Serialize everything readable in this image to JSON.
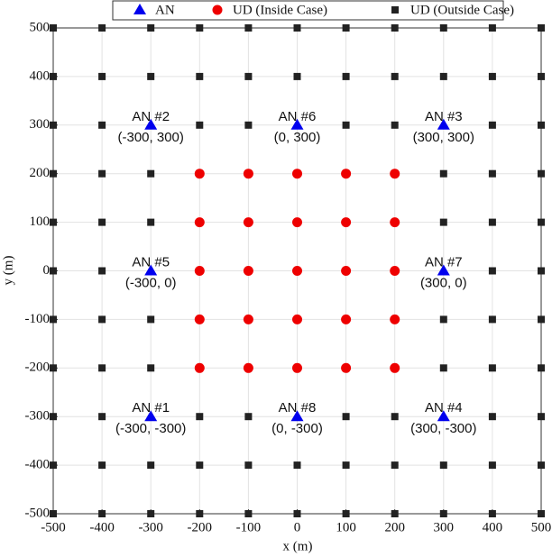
{
  "chart_data": {
    "type": "scatter",
    "xlabel": "x (m)",
    "ylabel": "y (m)",
    "xlim": [
      -500,
      500
    ],
    "ylim": [
      -500,
      500
    ],
    "xticks": [
      -500,
      -400,
      -300,
      -200,
      -100,
      0,
      100,
      200,
      300,
      400,
      500
    ],
    "yticks": [
      -500,
      -400,
      -300,
      -200,
      -100,
      0,
      100,
      200,
      300,
      400,
      500
    ],
    "grid": true,
    "series": [
      {
        "name": "AN",
        "color": "#0000ee",
        "marker": "triangle",
        "x": [
          -300,
          -300,
          300,
          300,
          -300,
          0,
          300,
          0
        ],
        "y": [
          -300,
          300,
          300,
          -300,
          0,
          300,
          0,
          -300
        ],
        "point_labels": [
          "AN #1",
          "AN #2",
          "AN #3",
          "AN #4",
          "AN #5",
          "AN #6",
          "AN #7",
          "AN #8"
        ],
        "coord_labels": [
          "(-300, -300)",
          "(-300, 300)",
          "(300, 300)",
          "(300, -300)",
          "(-300, 0)",
          "(0, 300)",
          "(300, 0)",
          "(0, -300)"
        ]
      },
      {
        "name": "UD (Inside Case)",
        "color": "#ee0000",
        "marker": "circle",
        "x": [
          -200,
          -100,
          0,
          100,
          200,
          -200,
          -100,
          0,
          100,
          200,
          -200,
          -100,
          0,
          100,
          200,
          -200,
          -100,
          0,
          100,
          200,
          -200,
          -100,
          0,
          100,
          200
        ],
        "y": [
          200,
          200,
          200,
          200,
          200,
          100,
          100,
          100,
          100,
          100,
          0,
          0,
          0,
          0,
          0,
          -100,
          -100,
          -100,
          -100,
          -100,
          -200,
          -200,
          -200,
          -200,
          -200
        ]
      },
      {
        "name": "UD (Outside Case)",
        "color": "#222222",
        "marker": "square",
        "x": [
          -500,
          -400,
          -300,
          -200,
          -100,
          0,
          100,
          200,
          300,
          400,
          500,
          -500,
          -400,
          -300,
          -200,
          -100,
          0,
          100,
          200,
          300,
          400,
          500,
          -500,
          -400,
          -200,
          -100,
          100,
          200,
          400,
          500,
          -500,
          -400,
          -300,
          300,
          400,
          500,
          -500,
          -400,
          -300,
          300,
          400,
          500,
          -500,
          -400,
          400,
          500,
          -500,
          -400,
          -300,
          300,
          400,
          500,
          -500,
          -400,
          -300,
          300,
          400,
          500,
          -500,
          -400,
          -200,
          -100,
          100,
          200,
          400,
          500,
          -500,
          -400,
          -300,
          -200,
          -100,
          0,
          100,
          200,
          300,
          400,
          500,
          -500,
          -400,
          -300,
          -200,
          -100,
          0,
          100,
          200,
          300,
          400,
          500
        ],
        "y": [
          500,
          500,
          500,
          500,
          500,
          500,
          500,
          500,
          500,
          500,
          500,
          400,
          400,
          400,
          400,
          400,
          400,
          400,
          400,
          400,
          400,
          400,
          300,
          300,
          300,
          300,
          300,
          300,
          300,
          300,
          200,
          200,
          200,
          200,
          200,
          200,
          100,
          100,
          100,
          100,
          100,
          100,
          0,
          0,
          0,
          0,
          -100,
          -100,
          -100,
          -100,
          -100,
          -100,
          -200,
          -200,
          -200,
          -200,
          -200,
          -200,
          -300,
          -300,
          -300,
          -300,
          -300,
          -300,
          -300,
          -300,
          -400,
          -400,
          -400,
          -400,
          -400,
          -400,
          -400,
          -400,
          -400,
          -400,
          -400,
          -500,
          -500,
          -500,
          -500,
          -500,
          -500,
          -500,
          -500,
          -500,
          -500,
          -500
        ]
      }
    ]
  }
}
